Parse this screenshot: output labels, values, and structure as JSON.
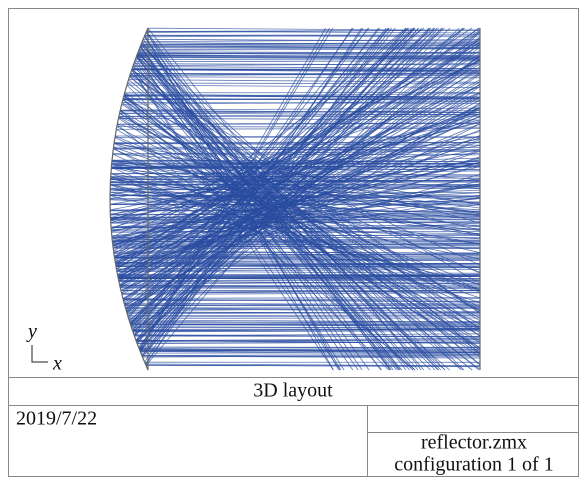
{
  "plot": {
    "axis_y": "y",
    "axis_x": "x"
  },
  "footer": {
    "title": "3D layout",
    "date": "2019/7/22",
    "file": "reflector.zmx",
    "configuration": "configuration 1 of 1"
  }
}
